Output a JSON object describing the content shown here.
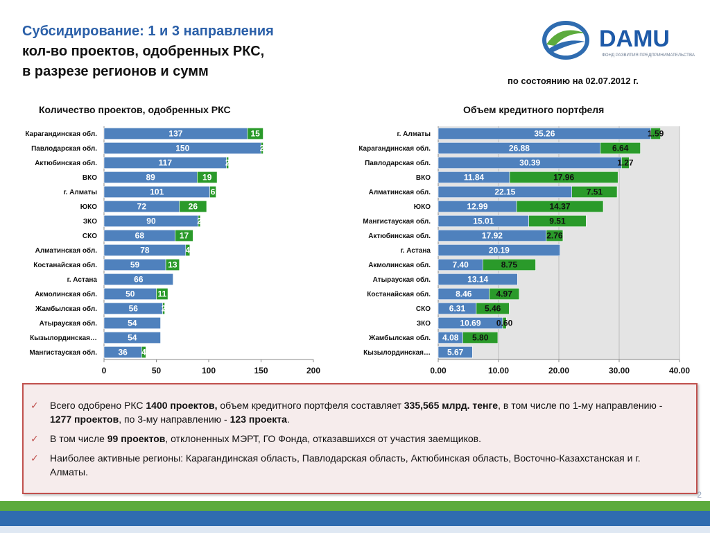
{
  "title": {
    "line1": "Субсидирование: 1 и 3 направления",
    "line2": "кол-во проектов, одобренных РКС,",
    "line3": "в разрезе регионов и сумм"
  },
  "logo": {
    "text": "DAMU",
    "subtitle": "ФОНД РАЗВИТИЯ ПРЕДПРИНИМАТЕЛЬСТВА",
    "colors": {
      "blue": "#1e5aa8",
      "green": "#5cab3c"
    }
  },
  "date_note": "по состоянию на 02.07.2012 г.",
  "colors": {
    "series1": "#4f81bd",
    "series2": "#2a9a2a",
    "plot_bg": "#e4e4e4",
    "accent": "#c0504d"
  },
  "chart_data": [
    {
      "type": "bar",
      "orientation": "horizontal",
      "stacked": true,
      "title": "Количество проектов, одобренных РКС",
      "categories": [
        "Карагандинская обл.",
        "Павлодарская обл.",
        "Актюбинская обл.",
        "ВКО",
        "г. Алматы",
        "ЮКО",
        "ЗКО",
        "СКО",
        "Алматинская обл.",
        "Костанайская обл.",
        "г. Астана",
        "Акмолинская обл.",
        "Жамбылская обл.",
        "Атырауская обл.",
        "Кызылординская…",
        "Мангистауская обл."
      ],
      "series": [
        {
          "values": [
            137,
            150,
            117,
            89,
            101,
            72,
            90,
            68,
            78,
            59,
            66,
            50,
            56,
            54,
            54,
            36
          ]
        },
        {
          "values": [
            15,
            2,
            2,
            19,
            6,
            26,
            2,
            17,
            4,
            13,
            null,
            11,
            2,
            null,
            null,
            4
          ]
        }
      ],
      "xlim": [
        0,
        200
      ],
      "xticks": [
        0,
        50,
        100,
        150,
        200
      ],
      "grid": false
    },
    {
      "type": "bar",
      "orientation": "horizontal",
      "stacked": true,
      "title": "Объем кредитного портфеля",
      "categories": [
        "г. Алматы",
        "Карагандинская обл.",
        "Павлодарская обл.",
        "ВКО",
        "Алматинская обл.",
        "ЮКО",
        "Мангистауская обл.",
        "Актюбинская обл.",
        "г. Астана",
        "Акмолинская обл.",
        "Атырауская обл.",
        "Костанайская обл.",
        "СКО",
        "ЗКО",
        "Жамбылская обл.",
        "Кызылординская…"
      ],
      "series": [
        {
          "values": [
            35.26,
            26.88,
            30.39,
            11.84,
            22.15,
            12.99,
            15.01,
            17.92,
            20.19,
            7.4,
            13.14,
            8.46,
            6.31,
            10.69,
            4.08,
            5.67
          ]
        },
        {
          "values": [
            1.59,
            6.64,
            1.27,
            17.96,
            7.51,
            14.37,
            9.51,
            2.76,
            null,
            8.75,
            null,
            4.97,
            5.46,
            0.6,
            5.8,
            null
          ]
        }
      ],
      "xlim": [
        0,
        40
      ],
      "xticks": [
        "0.00",
        "10.00",
        "20.00",
        "30.00",
        "40.00"
      ],
      "grid": true
    }
  ],
  "summary": {
    "items": [
      {
        "parts": [
          {
            "text": "Всего одобрено РКС ",
            "bold": false
          },
          {
            "text": "1400 проектов,",
            "bold": true
          },
          {
            "text": " объем кредитного портфеля составляет ",
            "bold": false
          },
          {
            "text": "335,565 млрд. тенге",
            "bold": true
          },
          {
            "text": ", в том числе по 1-му направлению -  ",
            "bold": false
          },
          {
            "text": "1277 проектов",
            "bold": true
          },
          {
            "text": ", по 3-му направлению - ",
            "bold": false
          },
          {
            "text": "123 проекта",
            "bold": true
          },
          {
            "text": ".",
            "bold": false
          }
        ]
      },
      {
        "parts": [
          {
            "text": "В том числе ",
            "bold": false
          },
          {
            "text": "99 проектов",
            "bold": true
          },
          {
            "text": ", отклоненных МЭРТ, ГО Фонда, отказавшихся от участия заемщиков.",
            "bold": false
          }
        ]
      },
      {
        "parts": [
          {
            "text": "Наиболее активные регионы: Карагандинская область, Павлодарская область, Актюбинская область, Восточно-Казахстанская и г. Алматы.",
            "bold": false
          }
        ]
      }
    ],
    "bullet_icon": "check-icon"
  },
  "page_number": "2"
}
